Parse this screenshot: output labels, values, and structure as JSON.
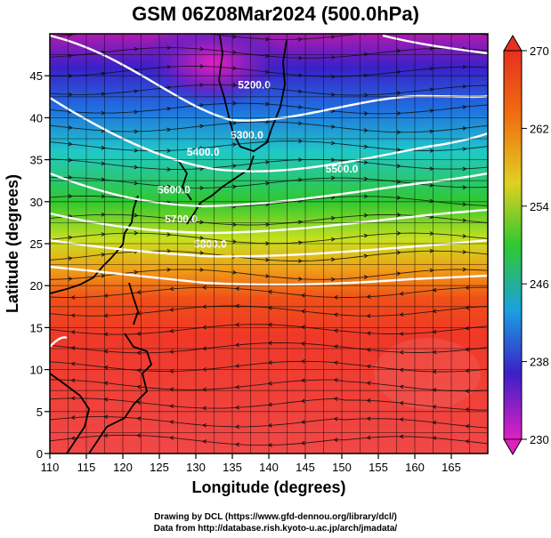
{
  "title": "GSM 06Z08Mar2024 (500.0hPa)",
  "xlabel": "Longitude (degrees)",
  "ylabel": "Latitude  (degrees)",
  "credits": [
    "Drawing by DCL (https://www.gfd-dennou.org/library/dcl/)",
    "Data from http://database.rish.kyoto-u.ac.jp/arch/jmadata/"
  ],
  "chart_data": {
    "type": "heatmap",
    "x_ticks": [
      "110",
      "115",
      "120",
      "125",
      "130",
      "135",
      "140",
      "145",
      "150",
      "155",
      "160",
      "165"
    ],
    "y_ticks": [
      "0",
      "5",
      "10",
      "15",
      "20",
      "25",
      "30",
      "35",
      "40",
      "45"
    ],
    "xlim": [
      110,
      170
    ],
    "ylim": [
      0,
      50
    ],
    "grid": true,
    "colorbar": {
      "ticks": [
        "230",
        "238",
        "246",
        "254",
        "262",
        "270"
      ],
      "range": [
        230,
        270
      ],
      "colors": [
        "#d81ab8",
        "#3a28c8",
        "#1aa8e0",
        "#28c828",
        "#f0d020",
        "#f07010",
        "#e83020"
      ]
    },
    "contours": [
      {
        "label": "5200.0",
        "lon": 138,
        "lat": 43.5
      },
      {
        "label": "5300.0",
        "lon": 137,
        "lat": 37.5
      },
      {
        "label": "5400.0",
        "lon": 131,
        "lat": 35.5
      },
      {
        "label": "5500.0",
        "lon": 150,
        "lat": 33.5
      },
      {
        "label": "5600.0",
        "lon": 127,
        "lat": 31.0
      },
      {
        "label": "5700.0",
        "lon": 128,
        "lat": 27.5
      },
      {
        "label": "5800.0",
        "lon": 132,
        "lat": 24.5
      }
    ]
  }
}
